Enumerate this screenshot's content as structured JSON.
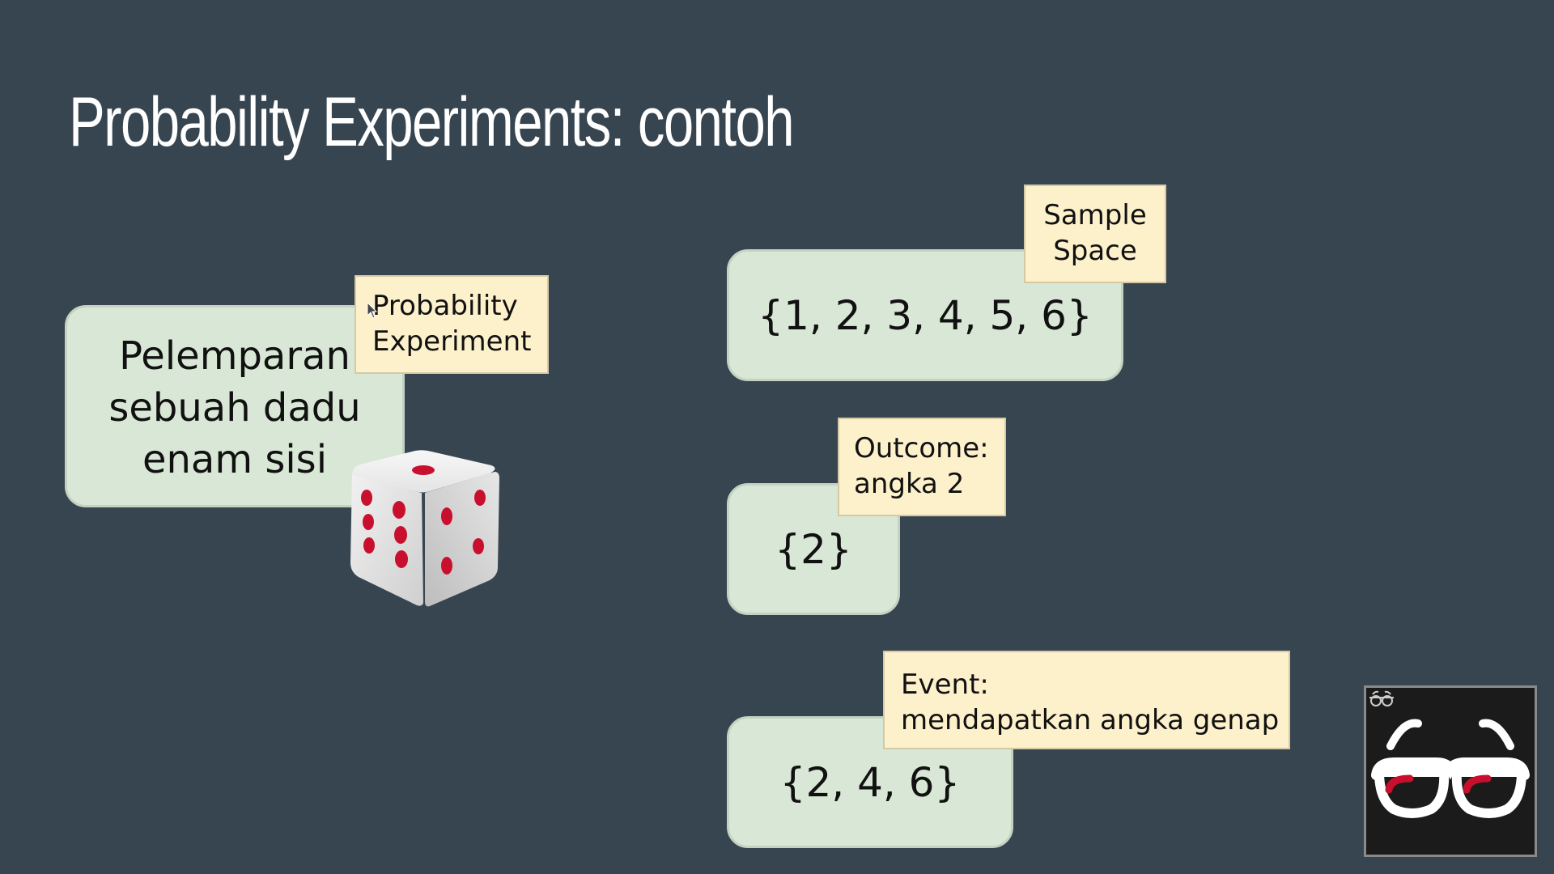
{
  "slide": {
    "title": "Probability Experiments: contoh",
    "experiment": {
      "text": "Pelemparan\nsebuah dadu\nenam sisi",
      "tag": "Probability\nExperiment"
    },
    "sample_space": {
      "value": "{1, 2, 3, 4, 5, 6}",
      "tag": "Sample\nSpace"
    },
    "outcome": {
      "value": "{2}",
      "tag": "Outcome:\nangka 2"
    },
    "event": {
      "value": "{2, 4, 6}",
      "tag": "Event:\nmendapatkan angka genap"
    }
  },
  "colors": {
    "background": "#374550",
    "green_box": "#d9e8d6",
    "yellow_tag": "#fdf1cc",
    "dice_pip": "#c8102e"
  },
  "icons": {
    "dice": "six-sided-die-icon",
    "logo": "glasses-logo-icon",
    "cursor": "mouse-pointer-icon"
  }
}
